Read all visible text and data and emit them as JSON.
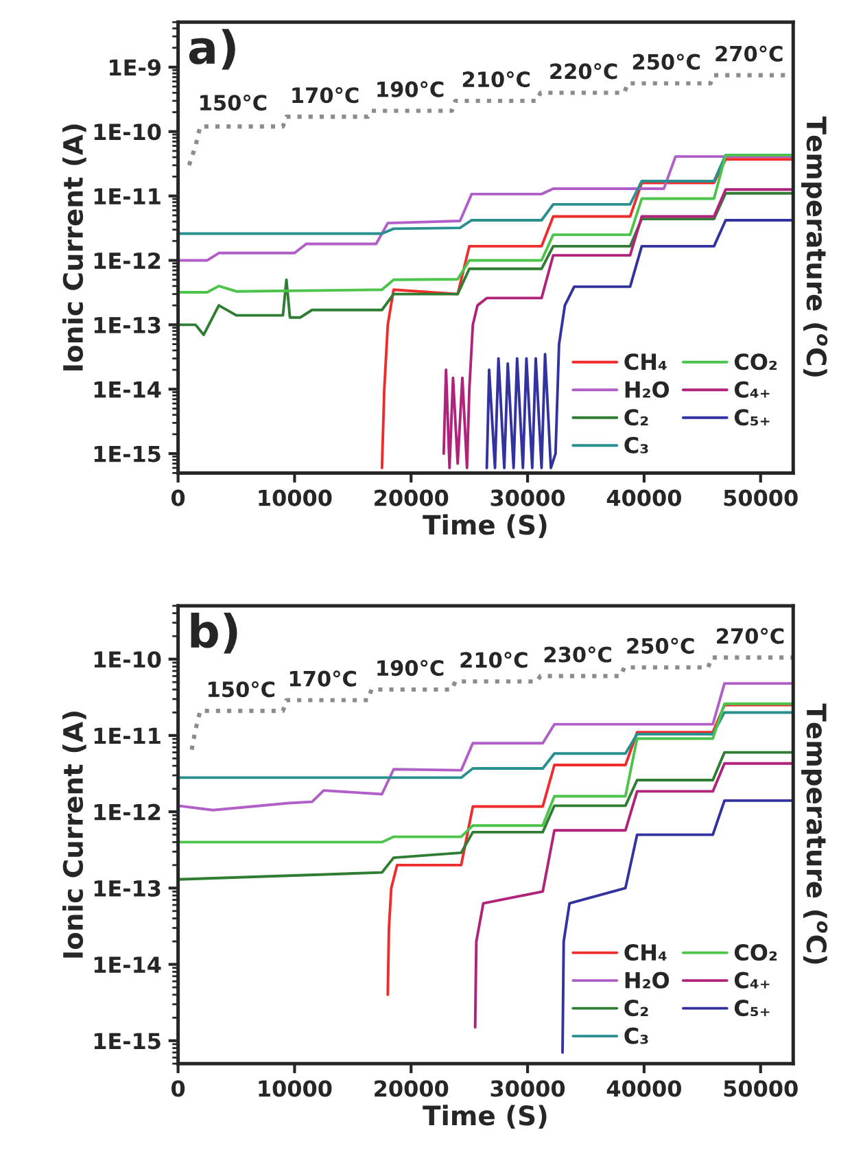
{
  "chart_data": [
    {
      "type": "line",
      "log": "y",
      "legend": "bottom right",
      "xlabel": "Time (S)",
      "ylabel": "Ionic Current (A)",
      "y2label": "Temperature ($^{o}$C)",
      "xlim": [
        0,
        52800
      ],
      "xticks": [
        0,
        10000,
        20000,
        30000,
        40000,
        50000
      ],
      "ylim": [
        5e-16,
        5e-09
      ],
      "yticks": [
        {
          "value": 1e-15,
          "label": "1E-15"
        },
        {
          "value": 1e-14,
          "label": "1E-14"
        },
        {
          "value": 1e-13,
          "label": "1E-13"
        },
        {
          "value": 1e-12,
          "label": "1E-12"
        },
        {
          "value": 1e-11,
          "label": "1E-11"
        },
        {
          "value": 1e-10,
          "label": "1E-10"
        },
        {
          "value": 1e-09,
          "label": "1E-9"
        }
      ],
      "annotations": [
        "a)",
        {
          "text": "150°C",
          "x": 4700,
          "y": 1.3e-10
        },
        {
          "text": "170°C",
          "x": 12600,
          "y": 1.7e-10
        },
        {
          "text": "190°C",
          "x": 19900,
          "y": 2.1e-10
        },
        {
          "text": "210°C",
          "x": 27300,
          "y": 3e-10
        },
        {
          "text": "220°C",
          "x": 34800,
          "y": 4e-10
        },
        {
          "text": "250°C",
          "x": 41900,
          "y": 5.6e-10
        },
        {
          "text": "270°C",
          "x": 49000,
          "y": 7.5e-10
        }
      ],
      "series": [
        {
          "color": "#8c8c8c",
          "line_style": "dotted",
          "x": [
            950,
            1500,
            1900,
            9000,
            9300,
            16300,
            16600,
            23500,
            23800,
            30800,
            31100,
            38300,
            38600,
            45700,
            46000,
            52800
          ],
          "values": [
            3e-11,
            6e-11,
            1.2e-10,
            1.2e-10,
            1.7e-10,
            1.7e-10,
            2.1e-10,
            2.1e-10,
            3e-10,
            3e-10,
            4e-10,
            4e-10,
            5.6e-10,
            5.6e-10,
            7.5e-10,
            7.5e-10
          ]
        },
        {
          "name": "CH₄",
          "color": "#ee2c2c",
          "x": [
            17500,
            17700,
            18000,
            18500,
            24000,
            25000,
            31200,
            32200,
            38800,
            39800,
            46000,
            47000,
            52800
          ],
          "values": [
            6e-16,
            1e-14,
            1e-13,
            3.5e-13,
            3e-13,
            1.66e-12,
            1.66e-12,
            4.8e-12,
            4.8e-12,
            1.6e-11,
            1.6e-11,
            3.7e-11,
            3.7e-11
          ]
        },
        {
          "name": "H₂O",
          "color": "#b05fc8",
          "x": [
            0,
            2500,
            3500,
            10000,
            11000,
            17000,
            18000,
            24200,
            25200,
            31200,
            32200,
            41700,
            42700,
            52800
          ],
          "values": [
            1e-12,
            1e-12,
            1.3e-12,
            1.3e-12,
            1.8e-12,
            1.8e-12,
            3.8e-12,
            4.1e-12,
            1.07e-11,
            1.07e-11,
            1.3e-11,
            1.3e-11,
            4.1e-11,
            4.1e-11
          ]
        },
        {
          "name": "C₂",
          "color": "#2e7d32",
          "x": [
            0,
            1500,
            2200,
            3500,
            5000,
            9000,
            9300,
            9600,
            10500,
            11500,
            17500,
            18500,
            24000,
            25000,
            31200,
            32200,
            38800,
            39800,
            46000,
            47000,
            52800
          ],
          "values": [
            1e-13,
            1e-13,
            7e-14,
            2e-13,
            1.4e-13,
            1.4e-13,
            5e-13,
            1.3e-13,
            1.3e-13,
            1.7e-13,
            1.7e-13,
            3e-13,
            3e-13,
            7.4e-13,
            7.4e-13,
            1.66e-12,
            1.66e-12,
            4.4e-12,
            4.4e-12,
            1.1e-11,
            1.1e-11
          ]
        },
        {
          "name": "C₃",
          "color": "#2a8f8f",
          "x": [
            0,
            17500,
            18500,
            24200,
            25200,
            31200,
            32200,
            38800,
            39800,
            46000,
            47000,
            52800
          ],
          "values": [
            2.6e-12,
            2.6e-12,
            3.1e-12,
            3.2e-12,
            4.2e-12,
            4.2e-12,
            7.4e-12,
            7.4e-12,
            1.7e-11,
            1.7e-11,
            4.3e-11,
            4.3e-11
          ]
        },
        {
          "name": "CO₂",
          "color": "#4cc44c",
          "x": [
            0,
            2500,
            3500,
            5000,
            17500,
            18500,
            24000,
            25000,
            31200,
            32200,
            38800,
            39800,
            46000,
            47000,
            52800
          ],
          "values": [
            3.2e-13,
            3.2e-13,
            4e-13,
            3.3e-13,
            3.5e-13,
            5e-13,
            5.1e-13,
            1e-12,
            1e-12,
            2.5e-12,
            2.5e-12,
            9.1e-12,
            9.1e-12,
            4.3e-11,
            4.3e-11
          ]
        },
        {
          "name": "C₄₊",
          "color": "#b0237a",
          "x": [
            22800,
            23000,
            23300,
            23600,
            24000,
            24400,
            24800,
            25000,
            25300,
            25700,
            26500,
            31200,
            32200,
            38800,
            39800,
            46000,
            47000,
            52800
          ],
          "values": [
            1e-15,
            2e-14,
            6e-16,
            1.5e-14,
            7e-16,
            1.5e-14,
            6e-16,
            1e-14,
            1e-13,
            2e-13,
            2.6e-13,
            2.6e-13,
            1.2e-12,
            1.2e-12,
            4.8e-12,
            4.8e-12,
            1.26e-11,
            1.26e-11
          ]
        },
        {
          "name": "C₅₊",
          "color": "#3333a0",
          "x": [
            26500,
            26700,
            27200,
            27500,
            28000,
            28300,
            28800,
            29100,
            29600,
            29900,
            30400,
            30700,
            31200,
            31500,
            32000,
            32400,
            32700,
            33200,
            34000,
            38800,
            39800,
            46000,
            47000,
            52800
          ],
          "values": [
            6e-16,
            2e-14,
            6e-16,
            3e-14,
            6e-16,
            2.5e-14,
            6e-16,
            3e-14,
            6e-16,
            3e-14,
            6e-16,
            3e-14,
            6e-16,
            3.5e-14,
            6e-16,
            1e-15,
            5e-14,
            2e-13,
            3.9e-13,
            3.9e-13,
            1.66e-12,
            1.66e-12,
            4.2e-12,
            4.2e-12
          ]
        }
      ]
    },
    {
      "type": "line",
      "log": "y",
      "legend": "bottom right",
      "xlabel": "Time (S)",
      "ylabel": "Ionic Current (A)",
      "y2label": "Temperature ($^{o}$C)",
      "xlim": [
        0,
        52800
      ],
      "xticks": [
        0,
        10000,
        20000,
        30000,
        40000,
        50000
      ],
      "ylim": [
        5e-16,
        5e-10
      ],
      "yticks": [
        {
          "value": 1e-15,
          "label": "1E-15"
        },
        {
          "value": 1e-14,
          "label": "1E-14"
        },
        {
          "value": 1e-13,
          "label": "1E-13"
        },
        {
          "value": 1e-12,
          "label": "1E-12"
        },
        {
          "value": 1e-11,
          "label": "1E-11"
        },
        {
          "value": 1e-10,
          "label": "1E-10"
        }
      ],
      "annotations": [
        "b)",
        {
          "text": "150°C",
          "x": 5400,
          "y": 2.1e-11
        },
        {
          "text": "170°C",
          "x": 12400,
          "y": 2.9e-11
        },
        {
          "text": "190°C",
          "x": 19900,
          "y": 4e-11
        },
        {
          "text": "210°C",
          "x": 27100,
          "y": 5.1e-11
        },
        {
          "text": "230°C",
          "x": 34300,
          "y": 6e-11
        },
        {
          "text": "250°C",
          "x": 41400,
          "y": 7.8e-11
        },
        {
          "text": "270°C",
          "x": 49100,
          "y": 1.05e-10
        }
      ],
      "series": [
        {
          "color": "#8c8c8c",
          "line_style": "dotted",
          "x": [
            1170,
            1500,
            1900,
            9000,
            9300,
            16300,
            16600,
            23500,
            23800,
            30800,
            31100,
            38000,
            38300,
            45500,
            45800,
            52800
          ],
          "values": [
            6.5e-12,
            1.2e-11,
            2.1e-11,
            2.1e-11,
            2.9e-11,
            2.9e-11,
            4e-11,
            4e-11,
            5.1e-11,
            5.1e-11,
            6e-11,
            6e-11,
            7.8e-11,
            7.8e-11,
            1.05e-10,
            1.05e-10
          ]
        },
        {
          "name": "CH₄",
          "color": "#ee2c2c",
          "x": [
            18000,
            18100,
            18300,
            18800,
            24300,
            25300,
            31300,
            32300,
            38400,
            39400,
            45900,
            46900,
            52800
          ],
          "values": [
            4e-15,
            3e-14,
            1e-13,
            2e-13,
            2e-13,
            1.17e-12,
            1.17e-12,
            4.1e-12,
            4.1e-12,
            1.1e-11,
            1.1e-11,
            2.5e-11,
            2.5e-11
          ]
        },
        {
          "name": "H₂O",
          "color": "#b05fc8",
          "x": [
            0,
            3000,
            9500,
            11500,
            12500,
            17500,
            18500,
            24300,
            25300,
            31300,
            32300,
            45900,
            46900,
            52800
          ],
          "values": [
            1.2e-12,
            1.05e-12,
            1.3e-12,
            1.35e-12,
            1.9e-12,
            1.7e-12,
            3.6e-12,
            3.5e-12,
            7.9e-12,
            7.9e-12,
            1.4e-11,
            1.4e-11,
            4.8e-11,
            4.8e-11
          ]
        },
        {
          "name": "C₂",
          "color": "#2e7d32",
          "x": [
            0,
            17500,
            18500,
            24300,
            25300,
            31300,
            32300,
            38400,
            39400,
            45900,
            46900,
            52800
          ],
          "values": [
            1.3e-13,
            1.6e-13,
            2.5e-13,
            2.9e-13,
            5.4e-13,
            5.4e-13,
            1.2e-12,
            1.2e-12,
            2.6e-12,
            2.6e-12,
            6e-12,
            6e-12
          ]
        },
        {
          "name": "C₃",
          "color": "#2a8f8f",
          "x": [
            0,
            24300,
            25300,
            31300,
            32300,
            38400,
            39400,
            45900,
            46900,
            52800
          ],
          "values": [
            2.8e-12,
            2.8e-12,
            3.7e-12,
            3.7e-12,
            5.8e-12,
            5.8e-12,
            1.04e-11,
            1.04e-11,
            2e-11,
            2e-11
          ]
        },
        {
          "name": "CO₂",
          "color": "#4cc44c",
          "x": [
            0,
            17500,
            18500,
            24300,
            25300,
            31300,
            32300,
            38400,
            39400,
            45900,
            46900,
            52800
          ],
          "values": [
            4e-13,
            4e-13,
            4.7e-13,
            4.7e-13,
            6.6e-13,
            6.6e-13,
            1.6e-12,
            1.6e-12,
            9.1e-12,
            9.1e-12,
            2.6e-11,
            2.6e-11
          ]
        },
        {
          "name": "C₄₊",
          "color": "#b0237a",
          "x": [
            25500,
            25600,
            26200,
            31300,
            32300,
            38400,
            39400,
            45900,
            46900,
            52800
          ],
          "values": [
            1.5e-15,
            2e-14,
            6.3e-14,
            9e-14,
            5.7e-13,
            5.7e-13,
            1.85e-12,
            1.85e-12,
            4.3e-12,
            4.3e-12
          ]
        },
        {
          "name": "C₅₊",
          "color": "#3333a0",
          "x": [
            33000,
            33100,
            33600,
            38400,
            39400,
            45900,
            46900,
            52800
          ],
          "values": [
            7e-16,
            2e-14,
            6.3e-14,
            1e-13,
            5e-13,
            5e-13,
            1.4e-12,
            1.4e-12
          ]
        }
      ]
    }
  ]
}
